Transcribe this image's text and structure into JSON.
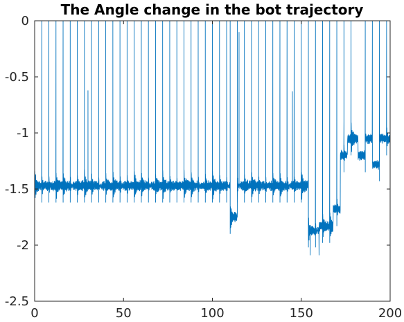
{
  "chart_data": {
    "type": "line",
    "title": "The Angle change in the bot trajectory",
    "xlabel": "",
    "ylabel": "",
    "xlim": [
      0,
      200
    ],
    "ylim": [
      -2.5,
      0
    ],
    "x_ticks": [
      0,
      50,
      100,
      150,
      200
    ],
    "y_ticks": [
      0,
      -0.5,
      -1,
      -1.5,
      -2,
      -2.5
    ],
    "x_tick_labels": [
      "0",
      "50",
      "100",
      "150",
      "200"
    ],
    "y_tick_labels": [
      "0",
      "-0.5",
      "-1",
      "-1.5",
      "-2",
      "-2.5"
    ],
    "grid": false,
    "legend": "none",
    "line_color": "#0072bd",
    "segments": [
      {
        "x_start": 0,
        "x_end": 110,
        "baseline": -1.47,
        "spikes_at": [
          0,
          4,
          8,
          12,
          16,
          20,
          24,
          28,
          32,
          36,
          40,
          44,
          48,
          52,
          56,
          60,
          64,
          68,
          72,
          76,
          80,
          84,
          88,
          92,
          96,
          100,
          104,
          108
        ]
      },
      {
        "x_start": 110,
        "x_end": 114,
        "baseline": -1.75,
        "spikes_at": [
          110
        ]
      },
      {
        "x_start": 114,
        "x_end": 154,
        "baseline": -1.47,
        "spikes_at": [
          114,
          118,
          122,
          126,
          130,
          134,
          138,
          142,
          146,
          150
        ]
      },
      {
        "x_start": 154,
        "x_end": 160,
        "baseline": -1.87,
        "spikes_at": [
          154,
          158
        ]
      },
      {
        "x_start": 160,
        "x_end": 168,
        "baseline": -1.83,
        "spikes_at": [
          162,
          166
        ]
      },
      {
        "x_start": 168,
        "x_end": 172,
        "baseline": -1.68,
        "spikes_at": [
          170
        ]
      },
      {
        "x_start": 172,
        "x_end": 176,
        "baseline": -1.2,
        "spikes_at": [
          174
        ]
      },
      {
        "x_start": 176,
        "x_end": 182,
        "baseline": -1.05,
        "spikes_at": [
          178
        ]
      },
      {
        "x_start": 182,
        "x_end": 186,
        "baseline": -1.2,
        "spikes_at": [
          186
        ]
      },
      {
        "x_start": 186,
        "x_end": 190,
        "baseline": -1.05,
        "spikes_at": [
          190
        ]
      },
      {
        "x_start": 190,
        "x_end": 194,
        "baseline": -1.28,
        "spikes_at": [
          194
        ]
      },
      {
        "x_start": 194,
        "x_end": 200,
        "baseline": -1.05,
        "spikes_at": [
          198
        ]
      }
    ],
    "partial_spikes": [
      {
        "x": 30,
        "y": -0.62
      },
      {
        "x": 60,
        "y": -0.95
      },
      {
        "x": 115,
        "y": -0.1
      },
      {
        "x": 145,
        "y": -0.63
      },
      {
        "x": 174,
        "y": -0.9
      }
    ],
    "dips": [
      {
        "x": 110,
        "y": -1.86
      },
      {
        "x": 155,
        "y": -2.09
      },
      {
        "x": 160,
        "y": -2.09
      }
    ]
  }
}
